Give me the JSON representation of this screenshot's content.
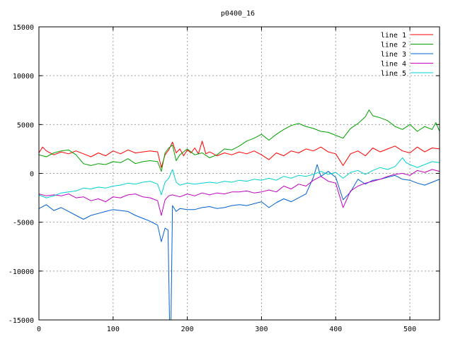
{
  "chart_data": {
    "type": "line",
    "title": "p0400_16",
    "xlabel": "",
    "ylabel": "",
    "xlim": [
      0,
      540
    ],
    "ylim": [
      -15000,
      15000
    ],
    "xticks": [
      0,
      100,
      200,
      300,
      400,
      500
    ],
    "yticks": [
      -15000,
      -10000,
      -5000,
      0,
      5000,
      10000,
      15000
    ],
    "grid": true,
    "legend_position": "top-right",
    "series": [
      {
        "name": "line 1",
        "color": "#ff0000",
        "points": [
          [
            0,
            2100
          ],
          [
            5,
            2700
          ],
          [
            10,
            2300
          ],
          [
            20,
            1900
          ],
          [
            30,
            2200
          ],
          [
            40,
            2000
          ],
          [
            50,
            2300
          ],
          [
            60,
            2000
          ],
          [
            70,
            1700
          ],
          [
            80,
            2100
          ],
          [
            90,
            1800
          ],
          [
            100,
            2300
          ],
          [
            110,
            2000
          ],
          [
            120,
            2400
          ],
          [
            130,
            2100
          ],
          [
            140,
            2200
          ],
          [
            150,
            2300
          ],
          [
            160,
            2200
          ],
          [
            165,
            600
          ],
          [
            170,
            1900
          ],
          [
            175,
            2400
          ],
          [
            180,
            3200
          ],
          [
            185,
            2100
          ],
          [
            190,
            2500
          ],
          [
            195,
            1800
          ],
          [
            200,
            2400
          ],
          [
            205,
            2100
          ],
          [
            210,
            2600
          ],
          [
            215,
            2000
          ],
          [
            220,
            3300
          ],
          [
            225,
            2000
          ],
          [
            230,
            2200
          ],
          [
            240,
            1800
          ],
          [
            250,
            2100
          ],
          [
            260,
            1900
          ],
          [
            270,
            2200
          ],
          [
            280,
            2000
          ],
          [
            290,
            2300
          ],
          [
            300,
            1900
          ],
          [
            310,
            1400
          ],
          [
            320,
            2100
          ],
          [
            330,
            1800
          ],
          [
            340,
            2300
          ],
          [
            350,
            2100
          ],
          [
            360,
            2500
          ],
          [
            370,
            2300
          ],
          [
            380,
            2700
          ],
          [
            390,
            2200
          ],
          [
            400,
            2000
          ],
          [
            410,
            800
          ],
          [
            420,
            2000
          ],
          [
            430,
            2300
          ],
          [
            440,
            1800
          ],
          [
            450,
            2600
          ],
          [
            460,
            2200
          ],
          [
            470,
            2500
          ],
          [
            480,
            2800
          ],
          [
            490,
            2300
          ],
          [
            500,
            2100
          ],
          [
            510,
            2700
          ],
          [
            520,
            2200
          ],
          [
            530,
            2600
          ],
          [
            540,
            2500
          ]
        ]
      },
      {
        "name": "line 2",
        "color": "#00a000",
        "points": [
          [
            0,
            1900
          ],
          [
            10,
            1700
          ],
          [
            20,
            2100
          ],
          [
            30,
            2300
          ],
          [
            40,
            2400
          ],
          [
            50,
            1900
          ],
          [
            60,
            1000
          ],
          [
            70,
            800
          ],
          [
            80,
            1000
          ],
          [
            90,
            900
          ],
          [
            100,
            1200
          ],
          [
            110,
            1100
          ],
          [
            120,
            1500
          ],
          [
            130,
            1000
          ],
          [
            140,
            1200
          ],
          [
            150,
            1300
          ],
          [
            160,
            1200
          ],
          [
            165,
            200
          ],
          [
            170,
            2100
          ],
          [
            175,
            2600
          ],
          [
            180,
            2900
          ],
          [
            185,
            1300
          ],
          [
            190,
            1900
          ],
          [
            200,
            2500
          ],
          [
            210,
            1900
          ],
          [
            220,
            2100
          ],
          [
            230,
            1600
          ],
          [
            240,
            1900
          ],
          [
            250,
            2500
          ],
          [
            260,
            2400
          ],
          [
            270,
            2800
          ],
          [
            280,
            3300
          ],
          [
            290,
            3600
          ],
          [
            300,
            4000
          ],
          [
            310,
            3400
          ],
          [
            320,
            4000
          ],
          [
            330,
            4500
          ],
          [
            340,
            4900
          ],
          [
            350,
            5100
          ],
          [
            360,
            4800
          ],
          [
            370,
            4600
          ],
          [
            380,
            4300
          ],
          [
            390,
            4200
          ],
          [
            400,
            3900
          ],
          [
            410,
            3600
          ],
          [
            420,
            4600
          ],
          [
            430,
            5100
          ],
          [
            440,
            5800
          ],
          [
            445,
            6500
          ],
          [
            450,
            5900
          ],
          [
            460,
            5700
          ],
          [
            470,
            5400
          ],
          [
            480,
            4800
          ],
          [
            490,
            4500
          ],
          [
            500,
            5000
          ],
          [
            510,
            4300
          ],
          [
            520,
            4800
          ],
          [
            530,
            4500
          ],
          [
            535,
            5200
          ],
          [
            540,
            4300
          ]
        ]
      },
      {
        "name": "line 3",
        "color": "#0060d0",
        "points": [
          [
            0,
            -3600
          ],
          [
            10,
            -3200
          ],
          [
            20,
            -3800
          ],
          [
            30,
            -3500
          ],
          [
            40,
            -3900
          ],
          [
            50,
            -4300
          ],
          [
            60,
            -4700
          ],
          [
            70,
            -4300
          ],
          [
            80,
            -4100
          ],
          [
            90,
            -3900
          ],
          [
            100,
            -3700
          ],
          [
            110,
            -3800
          ],
          [
            120,
            -3900
          ],
          [
            130,
            -4300
          ],
          [
            140,
            -4600
          ],
          [
            150,
            -4900
          ],
          [
            160,
            -5300
          ],
          [
            165,
            -7000
          ],
          [
            170,
            -5600
          ],
          [
            174,
            -5800
          ],
          [
            176,
            -15000
          ],
          [
            178,
            -15000
          ],
          [
            180,
            -3300
          ],
          [
            185,
            -3900
          ],
          [
            190,
            -3600
          ],
          [
            200,
            -3700
          ],
          [
            210,
            -3700
          ],
          [
            220,
            -3500
          ],
          [
            230,
            -3400
          ],
          [
            240,
            -3600
          ],
          [
            250,
            -3500
          ],
          [
            260,
            -3300
          ],
          [
            270,
            -3200
          ],
          [
            280,
            -3300
          ],
          [
            290,
            -3100
          ],
          [
            300,
            -2900
          ],
          [
            310,
            -3500
          ],
          [
            320,
            -3000
          ],
          [
            330,
            -2600
          ],
          [
            340,
            -2900
          ],
          [
            350,
            -2500
          ],
          [
            360,
            -2100
          ],
          [
            370,
            -400
          ],
          [
            375,
            900
          ],
          [
            380,
            -300
          ],
          [
            390,
            200
          ],
          [
            400,
            -400
          ],
          [
            410,
            -2700
          ],
          [
            420,
            -1900
          ],
          [
            430,
            -600
          ],
          [
            440,
            -1100
          ],
          [
            450,
            -700
          ],
          [
            460,
            -600
          ],
          [
            470,
            -400
          ],
          [
            480,
            -200
          ],
          [
            490,
            -600
          ],
          [
            500,
            -700
          ],
          [
            510,
            -1000
          ],
          [
            520,
            -1200
          ],
          [
            530,
            -900
          ],
          [
            540,
            -600
          ]
        ]
      },
      {
        "name": "line 4",
        "color": "#c000c0",
        "points": [
          [
            0,
            -2100
          ],
          [
            10,
            -2300
          ],
          [
            20,
            -2200
          ],
          [
            30,
            -2300
          ],
          [
            40,
            -2100
          ],
          [
            50,
            -2500
          ],
          [
            60,
            -2400
          ],
          [
            70,
            -2800
          ],
          [
            80,
            -2600
          ],
          [
            90,
            -2900
          ],
          [
            100,
            -2400
          ],
          [
            110,
            -2500
          ],
          [
            120,
            -2200
          ],
          [
            130,
            -2100
          ],
          [
            140,
            -2400
          ],
          [
            150,
            -2500
          ],
          [
            160,
            -2800
          ],
          [
            165,
            -4300
          ],
          [
            170,
            -2700
          ],
          [
            175,
            -2300
          ],
          [
            180,
            -2200
          ],
          [
            190,
            -2400
          ],
          [
            200,
            -2100
          ],
          [
            210,
            -2300
          ],
          [
            220,
            -2000
          ],
          [
            230,
            -2200
          ],
          [
            240,
            -2000
          ],
          [
            250,
            -2100
          ],
          [
            260,
            -1900
          ],
          [
            270,
            -1900
          ],
          [
            280,
            -1800
          ],
          [
            290,
            -2000
          ],
          [
            300,
            -1900
          ],
          [
            310,
            -1700
          ],
          [
            320,
            -1900
          ],
          [
            330,
            -1300
          ],
          [
            340,
            -1600
          ],
          [
            350,
            -1100
          ],
          [
            360,
            -1300
          ],
          [
            370,
            -700
          ],
          [
            380,
            -300
          ],
          [
            390,
            -800
          ],
          [
            400,
            -1000
          ],
          [
            410,
            -3500
          ],
          [
            420,
            -1800
          ],
          [
            430,
            -1300
          ],
          [
            440,
            -1000
          ],
          [
            450,
            -800
          ],
          [
            460,
            -600
          ],
          [
            470,
            -300
          ],
          [
            480,
            -100
          ],
          [
            490,
            0
          ],
          [
            500,
            -200
          ],
          [
            510,
            300
          ],
          [
            520,
            100
          ],
          [
            530,
            400
          ],
          [
            540,
            200
          ]
        ]
      },
      {
        "name": "line 5",
        "color": "#00d0d0",
        "points": [
          [
            0,
            -2200
          ],
          [
            10,
            -2500
          ],
          [
            20,
            -2300
          ],
          [
            30,
            -2000
          ],
          [
            40,
            -1900
          ],
          [
            50,
            -1800
          ],
          [
            60,
            -1500
          ],
          [
            70,
            -1600
          ],
          [
            80,
            -1400
          ],
          [
            90,
            -1500
          ],
          [
            100,
            -1300
          ],
          [
            110,
            -1200
          ],
          [
            120,
            -1000
          ],
          [
            130,
            -1100
          ],
          [
            140,
            -900
          ],
          [
            150,
            -800
          ],
          [
            160,
            -1100
          ],
          [
            165,
            -2200
          ],
          [
            170,
            -900
          ],
          [
            175,
            -500
          ],
          [
            180,
            400
          ],
          [
            185,
            -900
          ],
          [
            190,
            -1200
          ],
          [
            200,
            -1000
          ],
          [
            210,
            -1100
          ],
          [
            220,
            -1000
          ],
          [
            230,
            -900
          ],
          [
            240,
            -1000
          ],
          [
            250,
            -800
          ],
          [
            260,
            -900
          ],
          [
            270,
            -700
          ],
          [
            280,
            -800
          ],
          [
            290,
            -600
          ],
          [
            300,
            -700
          ],
          [
            310,
            -500
          ],
          [
            320,
            -700
          ],
          [
            330,
            -300
          ],
          [
            340,
            -500
          ],
          [
            350,
            -200
          ],
          [
            360,
            -300
          ],
          [
            370,
            -100
          ],
          [
            380,
            200
          ],
          [
            390,
            -100
          ],
          [
            400,
            100
          ],
          [
            410,
            -500
          ],
          [
            420,
            100
          ],
          [
            430,
            300
          ],
          [
            440,
            -100
          ],
          [
            450,
            300
          ],
          [
            460,
            600
          ],
          [
            470,
            400
          ],
          [
            480,
            700
          ],
          [
            490,
            1600
          ],
          [
            495,
            1100
          ],
          [
            500,
            900
          ],
          [
            510,
            600
          ],
          [
            520,
            900
          ],
          [
            530,
            1200
          ],
          [
            540,
            1100
          ]
        ]
      }
    ]
  }
}
